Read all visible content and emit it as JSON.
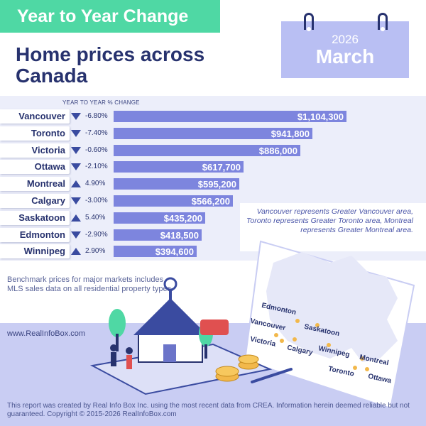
{
  "badge": "Year to Year Change",
  "headline": "Home prices across Canada",
  "calendar": {
    "year": "2026",
    "month": "March"
  },
  "chart_data": {
    "type": "bar",
    "orientation": "horizontal",
    "axis_caption": "YEAR TO YEAR % CHANGE",
    "categories": [
      "Vancouver",
      "Toronto",
      "Victoria",
      "Ottawa",
      "Montreal",
      "Calgary",
      "Saskatoon",
      "Edmonton",
      "Winnipeg"
    ],
    "values": [
      1104300,
      941800,
      886000,
      617700,
      595200,
      566200,
      435200,
      418500,
      394600
    ],
    "value_labels": [
      "$1,104,300",
      "$941,800",
      "$886,000",
      "$617,700",
      "$595,200",
      "$566,200",
      "$435,200",
      "$418,500",
      "$394,600"
    ],
    "pct_change": [
      "-6.80%",
      "-7.40%",
      "-0.60%",
      "-2.10%",
      "4.90%",
      "-3.00%",
      "5.40%",
      "-2.90%",
      "2.90%"
    ],
    "direction": [
      "down",
      "down",
      "down",
      "down",
      "up",
      "down",
      "up",
      "down",
      "up"
    ],
    "colors": {
      "bar": "#7d85de",
      "arrow": "#3a4ba0",
      "accent": "#4fd8a4"
    }
  },
  "note": "Vancouver represents Greater Vancouver area, Toronto represents Greater Toronto area, Montreal represents Greater Montreal area.",
  "benchmark": "Benchmark prices for major markets includes MLS sales data on all residential property types.",
  "website": "www.RealInfoBox.com",
  "map_labels": [
    "Edmonton",
    "Saskatoon",
    "Vancouver",
    "Victoria",
    "Calgary",
    "Winnipeg",
    "Montreal",
    "Toronto",
    "Ottawa"
  ],
  "footer": "This report was created by Real Info Box Inc. using the most recent data from CREA. Information herein deemed reliable but not guaranteed. Copyright © 2015-2026 RealInfoBox.com"
}
